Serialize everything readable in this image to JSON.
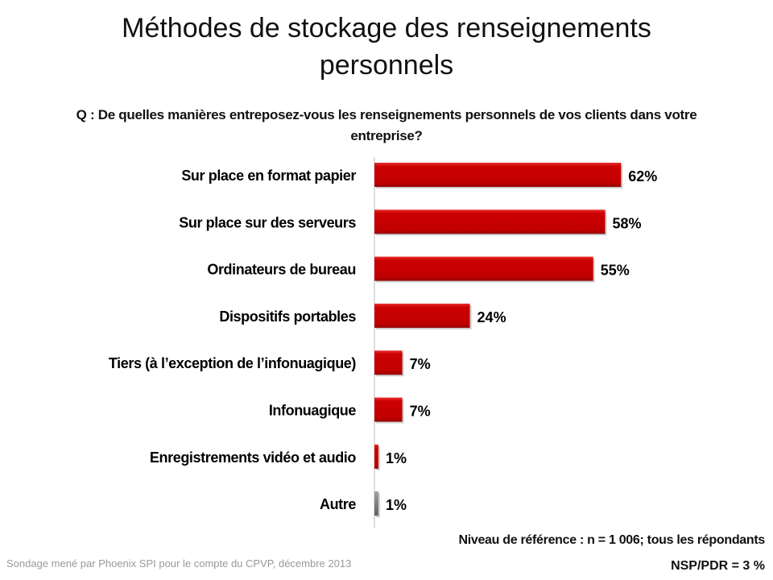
{
  "title": "Méthodes de stockage des renseignements personnels",
  "question": "Q : De quelles manières entreposez-vous les renseignements personnels de vos clients dans votre entreprise?",
  "chart_data": {
    "type": "bar",
    "orientation": "horizontal",
    "categories": [
      "Sur place en format papier",
      "Sur place sur des serveurs",
      "Ordinateurs de bureau",
      "Dispositifs portables",
      "Tiers (à l’exception de l’infonuagique)",
      "Infonuagique",
      "Enregistrements vidéo et audio",
      "Autre"
    ],
    "values": [
      62,
      58,
      55,
      24,
      7,
      7,
      1,
      1
    ],
    "labels": [
      "62%",
      "58%",
      "55%",
      "24%",
      "7%",
      "7%",
      "1%",
      "1%"
    ],
    "colors": [
      "#cc0000",
      "#cc0000",
      "#cc0000",
      "#cc0000",
      "#cc0000",
      "#cc0000",
      "#cc0000",
      "#808080"
    ],
    "unit": "%",
    "grid": false
  },
  "baseline_note": "Niveau de référence : n = 1 006; tous les répondants",
  "nsp_note": "NSP/PDR = 3 %",
  "source": "Sondage mené par Phoenix SPI pour le compte du CPVP, décembre 2013"
}
